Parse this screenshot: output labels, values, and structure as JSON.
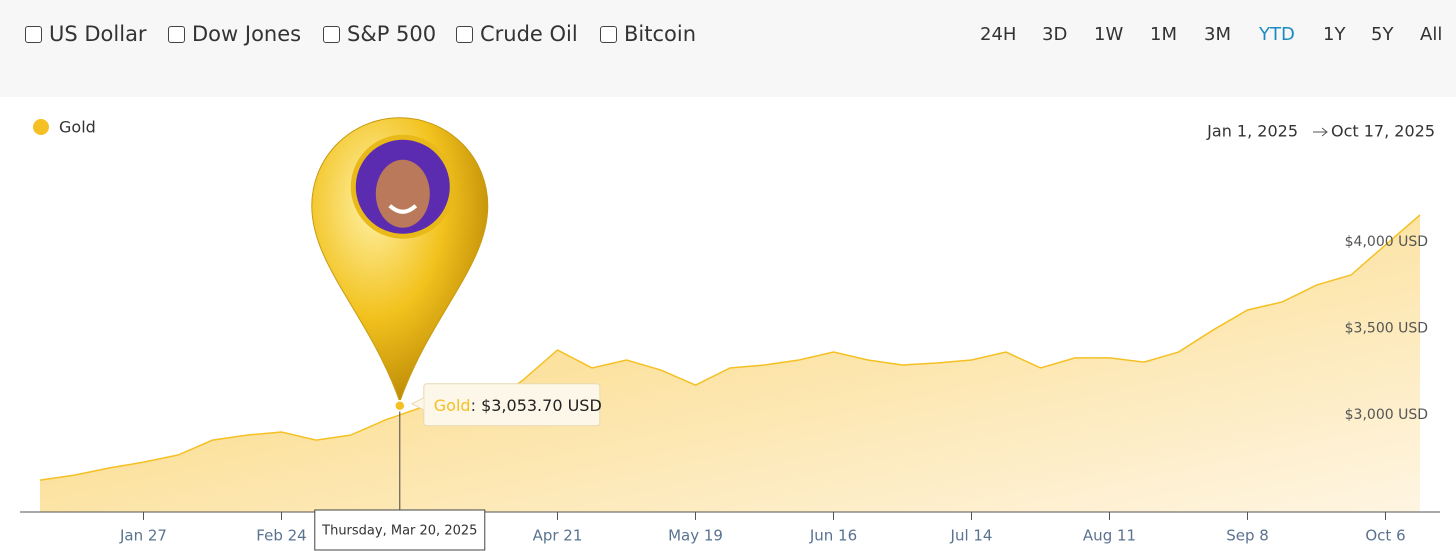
{
  "controls": {
    "assets": [
      "US Dollar",
      "Dow Jones",
      "S&P 500",
      "Crude Oil",
      "Bitcoin"
    ],
    "ranges": [
      "24H",
      "3D",
      "1W",
      "1M",
      "3M",
      "YTD",
      "1Y",
      "5Y",
      "All"
    ],
    "selected_range": "YTD"
  },
  "chart_data": {
    "type": "area",
    "date_range": {
      "start": "Jan 1, 2025",
      "end": "Oct 17, 2025"
    },
    "categories": [
      null,
      null,
      null,
      "Jan 27",
      null,
      null,
      null,
      "Feb 24",
      null,
      null,
      null,
      null,
      null,
      null,
      null,
      "Apr 21",
      null,
      null,
      null,
      "May 19",
      null,
      null,
      null,
      "Jun 16",
      null,
      null,
      null,
      "Jul 14",
      null,
      null,
      null,
      "Aug 11",
      null,
      null,
      null,
      "Sep 8",
      null,
      null,
      null,
      "Oct 6",
      null
    ],
    "series": [
      {
        "name": "Gold",
        "color": "#f5c024",
        "values": [
          2624,
          2653,
          2694,
          2728,
          2769,
          2855,
          2884,
          2902,
          2855,
          2884,
          2971,
          3040,
          3116,
          3058,
          3202,
          3376,
          3272,
          3318,
          3260,
          3173,
          3272,
          3289,
          3318,
          3364,
          3318,
          3289,
          3301,
          3318,
          3364,
          3272,
          3330,
          3330,
          3306,
          3364,
          3491,
          3607,
          3653,
          3751,
          3809,
          3983,
          4156
        ]
      }
    ],
    "ylim": [
      2440,
      4820
    ],
    "yticks": [
      {
        "value": 3000,
        "label": "$3,000 USD"
      },
      {
        "value": 3500,
        "label": "$3,500 USD"
      },
      {
        "value": 4000,
        "label": "$4,000 USD"
      }
    ],
    "grid": false,
    "tooltip": {
      "date": "Thursday, Mar 20, 2025",
      "value": 3053.7,
      "value_label": "$3,053.70 USD"
    }
  }
}
